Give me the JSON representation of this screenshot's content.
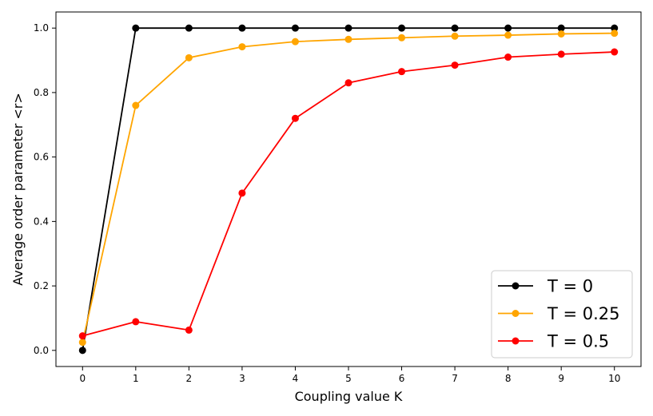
{
  "chart_data": {
    "type": "line",
    "title": "",
    "xlabel": "Coupling value K",
    "ylabel": "Average order parameter <r>",
    "x": [
      0,
      1,
      2,
      3,
      4,
      5,
      6,
      7,
      8,
      9,
      10
    ],
    "xlim": [
      -0.5,
      10.5
    ],
    "ylim": [
      -0.05,
      1.05
    ],
    "xticks": [
      "0",
      "1",
      "2",
      "3",
      "4",
      "5",
      "6",
      "7",
      "8",
      "9",
      "10"
    ],
    "yticks": [
      "0.0",
      "0.2",
      "0.4",
      "0.6",
      "0.8",
      "1.0"
    ],
    "grid": false,
    "legend_position": "bottom-right",
    "series": [
      {
        "name": "T = 0",
        "color": "#000000",
        "values": [
          0.0,
          1.0,
          1.0,
          1.0,
          1.0,
          1.0,
          1.0,
          1.0,
          1.0,
          1.0,
          1.0
        ]
      },
      {
        "name": "T = 0.25",
        "color": "#FFA500",
        "values": [
          0.025,
          0.76,
          0.908,
          0.942,
          0.958,
          0.965,
          0.97,
          0.975,
          0.978,
          0.982,
          0.984
        ]
      },
      {
        "name": "T = 0.5",
        "color": "#FF0000",
        "values": [
          0.045,
          0.089,
          0.063,
          0.488,
          0.72,
          0.83,
          0.865,
          0.885,
          0.91,
          0.919,
          0.926
        ]
      }
    ]
  }
}
